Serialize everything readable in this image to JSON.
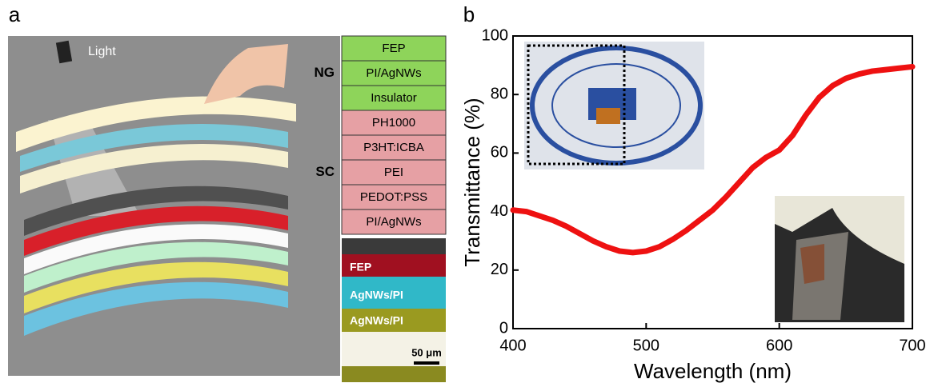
{
  "panel_a": {
    "label": "a",
    "light_label": "Light",
    "groups": [
      {
        "name": "NG",
        "layers": [
          "FEP",
          "PI/AgNWs",
          "Insulator"
        ]
      },
      {
        "name": "SC",
        "layers": [
          "PH1000",
          "P3HT:ICBA",
          "PEI",
          "PEDOT:PSS",
          "PI/AgNWs"
        ]
      }
    ],
    "sem_labels": [
      "FEP",
      "AgNWs/PI",
      "AgNWs/PI"
    ],
    "scale_bar": "50 μm"
  },
  "chart_data": {
    "type": "line",
    "panel_label": "b",
    "xlabel": "Wavelength (nm)",
    "ylabel": "Transmittance (%)",
    "x": [
      400,
      410,
      420,
      430,
      440,
      450,
      460,
      470,
      480,
      490,
      500,
      510,
      520,
      530,
      540,
      550,
      560,
      570,
      580,
      590,
      600,
      610,
      620,
      630,
      640,
      650,
      660,
      670,
      680,
      690,
      700
    ],
    "series": [
      {
        "color": "#ee1111",
        "values": [
          40.5,
          40,
          38.5,
          37,
          35,
          32.5,
          30,
          28,
          26.5,
          26,
          26.5,
          28,
          30.5,
          33.5,
          37,
          40.5,
          45,
          50,
          55,
          58.5,
          61,
          66,
          73,
          79,
          83,
          85.5,
          87,
          88,
          88.5,
          89,
          89.5
        ]
      }
    ],
    "xlim": [
      400,
      700
    ],
    "ylim": [
      0,
      100
    ],
    "xticks": [
      400,
      500,
      600,
      700
    ],
    "yticks": [
      0,
      20,
      40,
      60,
      80,
      100
    ]
  }
}
